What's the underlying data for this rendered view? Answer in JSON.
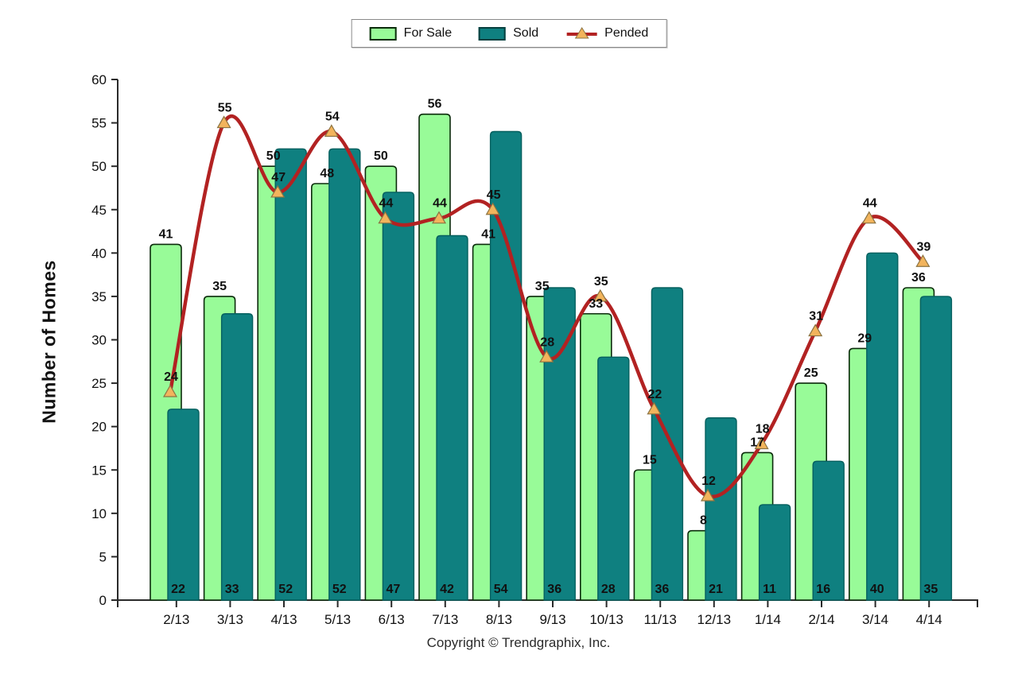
{
  "legend": {
    "items": [
      {
        "label": "For Sale",
        "symbol": "swatch",
        "color": "#98FB98"
      },
      {
        "label": "Sold",
        "symbol": "swatch",
        "color": "#0F8080"
      },
      {
        "label": "Pended",
        "symbol": "line-triangle",
        "line_color": "#B22222",
        "marker_color": "#F2B45C"
      }
    ]
  },
  "chart_data": {
    "type": "bar",
    "subtype": "grouped-bars-with-line-overlay",
    "categories": [
      "2/13",
      "3/13",
      "4/13",
      "5/13",
      "6/13",
      "7/13",
      "8/13",
      "9/13",
      "10/13",
      "11/13",
      "12/13",
      "1/14",
      "2/14",
      "3/14",
      "4/14"
    ],
    "series": [
      {
        "name": "For Sale",
        "type": "bar",
        "color": "#98FB98",
        "border_color": "#0b2b0b",
        "values": [
          41,
          35,
          50,
          48,
          50,
          56,
          41,
          35,
          33,
          15,
          8,
          17,
          25,
          29,
          36
        ]
      },
      {
        "name": "Sold",
        "type": "bar",
        "color": "#0F8080",
        "border_color": "#06605f",
        "values": [
          22,
          33,
          52,
          52,
          47,
          42,
          54,
          36,
          28,
          36,
          21,
          11,
          16,
          40,
          35
        ]
      },
      {
        "name": "Pended",
        "type": "line",
        "color": "#B22222",
        "marker": "triangle-up",
        "marker_fill": "#F2B45C",
        "marker_stroke": "#8b7342",
        "values": [
          24,
          55,
          47,
          54,
          44,
          44,
          45,
          28,
          35,
          22,
          12,
          18,
          31,
          44,
          39
        ]
      }
    ],
    "title": "",
    "xlabel": "",
    "ylabel": "Number of Homes",
    "ylim": [
      0,
      60
    ],
    "ytick_step": 5,
    "grid": false,
    "legend_position": "top-center",
    "label_color": "#111111",
    "axis_color": "#2a2a2a"
  },
  "footer": {
    "copyright": "Copyright © Trendgraphix, Inc."
  }
}
